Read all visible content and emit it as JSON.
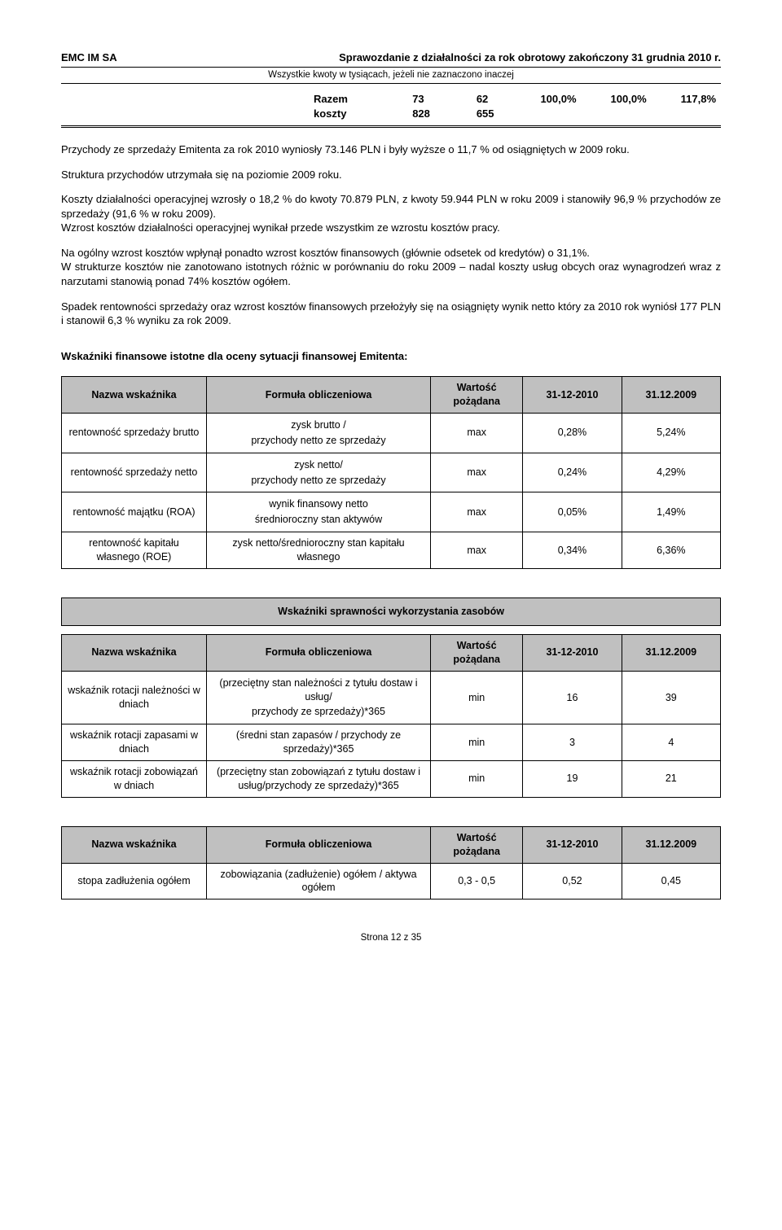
{
  "header": {
    "company": "EMC IM SA",
    "report_title": "Sprawozdanie z działalności za rok obrotowy zakończony  31 grudnia 2010 r.",
    "sub": "Wszystkie kwoty w tysiącach, jeżeli nie zaznaczono inaczej"
  },
  "razem": {
    "label": "Razem koszty",
    "v1": "73 828",
    "v2": "62 655",
    "p1": "100,0%",
    "p2": "100,0%",
    "p3": "117,8%"
  },
  "para1": "Przychody ze sprzedaży Emitenta za rok 2010 wyniosły 73.146 PLN i były wyższe o 11,7 % od osiągniętych w 2009 roku.",
  "para2": "Struktura przychodów utrzymała się na poziomie 2009 roku.",
  "para3": "Koszty działalności operacyjnej wzrosły o 18,2 % do  kwoty 70.879 PLN, z kwoty 59.944 PLN w roku 2009 i stanowiły 96,9 % przychodów ze sprzedaży (91,6 % w roku 2009).",
  "para3b": "Wzrost kosztów działalności operacyjnej wynikał przede wszystkim ze wzrostu kosztów pracy.",
  "para4": "Na ogólny wzrost  kosztów wpłynął ponadto wzrost kosztów  finansowych (głównie odsetek od kredytów) o 31,1%.",
  "para4b": "W strukturze kosztów nie zanotowano istotnych różnic w porównaniu do roku 2009 – nadal koszty usług obcych oraz wynagrodzeń wraz z narzutami stanowią ponad 74% kosztów ogółem.",
  "para5": "Spadek rentowności sprzedaży oraz wzrost kosztów finansowych przełożyły się na osiągnięty wynik netto który za 2010 rok wyniósł 177 PLN i stanowił 6,3 % wyniku za rok 2009.",
  "section_title": "Wskaźniki  finansowe istotne dla oceny sytuacji finansowej Emitenta:",
  "tbl_headers": {
    "c1": "Nazwa wskaźnika",
    "c2": "Formuła obliczeniowa",
    "c3": "Wartość pożądana",
    "c4": "31-12-2010",
    "c5": "31.12.2009"
  },
  "t1": [
    {
      "name": "rentowność sprzedaży brutto",
      "f1": "zysk brutto /",
      "f2": "przychody netto ze sprzedaży",
      "des": "max",
      "v1": "0,28%",
      "v2": "5,24%"
    },
    {
      "name": "rentowność sprzedaży netto",
      "f1": "zysk netto/",
      "f2": "przychody netto ze sprzedaży",
      "des": "max",
      "v1": "0,24%",
      "v2": "4,29%"
    },
    {
      "name": "rentowność majątku (ROA)",
      "f1": "wynik finansowy netto",
      "f2": "średnioroczny stan aktywów",
      "des": "max",
      "v1": "0,05%",
      "v2": "1,49%"
    },
    {
      "name": "rentowność kapitału własnego (ROE)",
      "f1": "zysk netto/średnioroczny stan kapitału własnego",
      "f2": "",
      "des": "max",
      "v1": "0,34%",
      "v2": "6,36%"
    }
  ],
  "t2_title": "Wskaźniki sprawności wykorzystania zasobów",
  "t2": [
    {
      "name": "wskaźnik rotacji należności w dniach",
      "f1": "(przeciętny stan należności z tytułu dostaw i usług/",
      "f2": "przychody ze sprzedaży)*365",
      "des": "min",
      "v1": "16",
      "v2": "39"
    },
    {
      "name": "wskaźnik rotacji zapasami w dniach",
      "f1": "(średni stan zapasów / przychody ze sprzedaży)*365",
      "f2": "",
      "des": "min",
      "v1": "3",
      "v2": "4"
    },
    {
      "name": "wskaźnik rotacji zobowiązań w dniach",
      "f1": "(przeciętny stan zobowiązań z tytułu dostaw i usług/przychody ze sprzedaży)*365",
      "f2": "",
      "des": "min",
      "v1": "19",
      "v2": "21"
    }
  ],
  "t3": [
    {
      "name": "stopa zadłużenia ogółem",
      "f1": "zobowiązania (zadłużenie) ogółem / aktywa ogółem",
      "f2": "",
      "des": "0,3 - 0,5",
      "v1": "0,52",
      "v2": "0,45"
    }
  ],
  "footer": "Strona 12 z 35"
}
